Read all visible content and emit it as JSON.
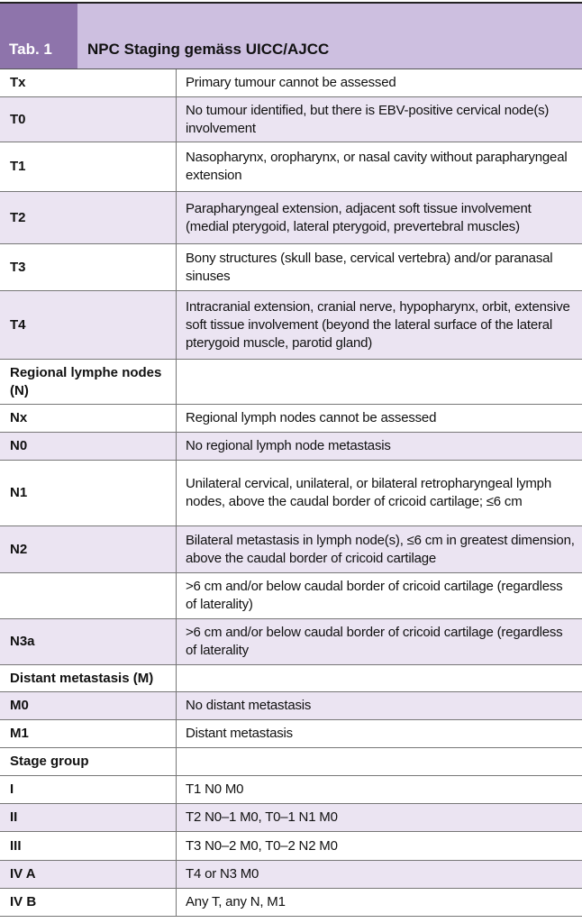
{
  "header": {
    "tab_label": "Tab. 1",
    "title": "NPC Staging gemäss UICC/AJCC"
  },
  "table": {
    "rows": [
      {
        "label": "Tx",
        "description": "Primary tumour cannot be assessed"
      },
      {
        "label": "T0",
        "description": "No tumour identified, but there is EBV-positive cervical node(s) involvement"
      },
      {
        "label": "T1",
        "description": "Nasopharynx, oropharynx, or nasal cavity without parapharyngeal extension"
      },
      {
        "label": "T2",
        "description": "Parapharyngeal extension, adjacent soft tissue involvement (medial pterygoid, lateral pterygoid, prevertebral muscles)"
      },
      {
        "label": "T3",
        "description": "Bony structures (skull base, cervical vertebra) and/or paranasal sinuses"
      },
      {
        "label": "T4",
        "description": "Intracranial extension, cranial nerve, hypopharynx, orbit, extensive soft tissue involvement (beyond the lateral surface of the lateral pterygoid muscle, parotid gland)"
      },
      {
        "label": "Regional lymphe nodes (N)"
      },
      {
        "label": "Nx",
        "description": "Regional lymph nodes cannot be assessed"
      },
      {
        "label": "N0",
        "description": "No regional lymph node metastasis"
      },
      {
        "label": "N1",
        "description": "Unilateral cervical, unilateral, or bilateral retropharyngeal lymph nodes, above the caudal border of cricoid cartilage; ≤6 cm"
      },
      {
        "label": "N2",
        "description": "Bilateral metastasis in lymph node(s), ≤6 cm in greatest dimension, above the caudal border of cricoid cartilage"
      },
      {
        "description": ">6 cm and/or below caudal border of cricoid cartilage (regardless of laterality)"
      },
      {
        "label": "N3a",
        "description": ">6 cm and/or below caudal border of cricoid cartilage (regardless of laterality"
      },
      {
        "label": "Distant metastasis (M)"
      },
      {
        "label": "M0",
        "description": "No distant metastasis"
      },
      {
        "label": "M1",
        "description": "Distant metastasis"
      },
      {
        "label": "Stage group"
      },
      {
        "label": "I",
        "description": "T1 N0 M0"
      },
      {
        "label": "II",
        "description": "T2 N0–1 M0, T0–1 N1 M0"
      },
      {
        "label": "III",
        "description": "T3 N0–2 M0, T0–2 N2 M0"
      },
      {
        "label": "IV A",
        "description": "T4 or N3 M0"
      },
      {
        "label": "IV B",
        "description": "Any T, any N, M1"
      }
    ]
  }
}
